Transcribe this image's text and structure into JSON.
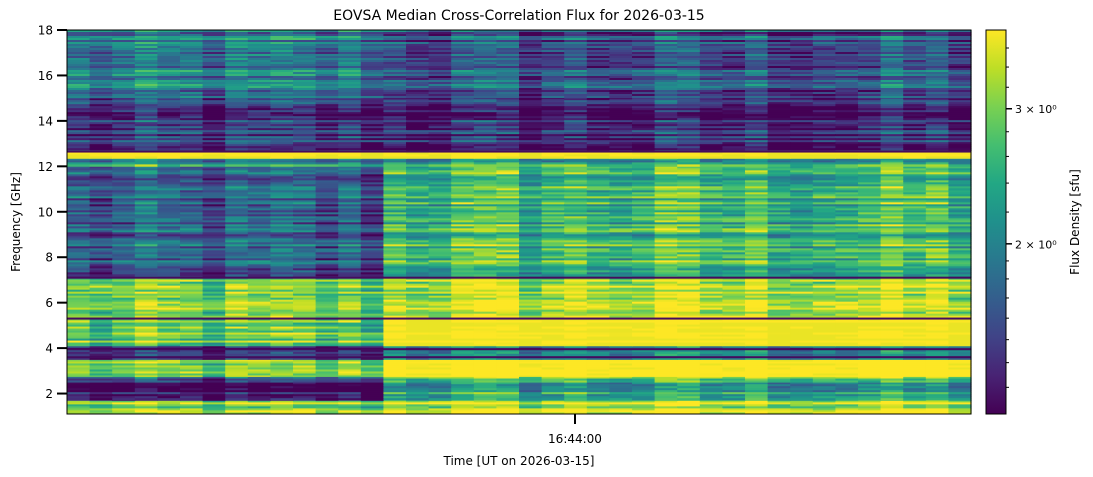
{
  "chart_data": {
    "type": "heatmap",
    "title": "EOVSA Median Cross-Correlation Flux for 2026-03-15",
    "xlabel": "Time [UT on 2026-03-15]",
    "ylabel": "Frequency [GHz]",
    "ylim": [
      1.1,
      18.0
    ],
    "x_ticks": [
      "16:44:00"
    ],
    "y_ticks": [
      "2",
      "4",
      "6",
      "8",
      "10",
      "12",
      "14",
      "16",
      "18"
    ],
    "colorbar": {
      "label": "Flux Density [sfu]",
      "scale": "log",
      "range": [
        1.2,
        3.8
      ],
      "colormap": "viridis",
      "ticks": [
        {
          "value": 2,
          "label": "2 × 10⁰"
        },
        {
          "value": 3,
          "label": "3 × 10⁰"
        }
      ]
    },
    "time_columns": 40,
    "transition_column": 14,
    "bands": [
      {
        "f0": 1.1,
        "f1": 1.7,
        "before": 2.9,
        "after": 3.4
      },
      {
        "f0": 1.7,
        "f1": 2.5,
        "before": 1.25,
        "after": 2.4
      },
      {
        "f0": 2.5,
        "f1": 2.75,
        "before": 1.8,
        "after": 3.2
      },
      {
        "f0": 2.75,
        "f1": 3.5,
        "before": 2.6,
        "after": 3.8
      },
      {
        "f0": 3.5,
        "f1": 4.1,
        "before": 1.3,
        "after": 1.9
      },
      {
        "f0": 4.1,
        "f1": 5.3,
        "before": 2.8,
        "after": 3.8
      },
      {
        "f0": 5.3,
        "f1": 7.1,
        "before": 3.0,
        "after": 3.5
      },
      {
        "f0": 7.1,
        "f1": 12.0,
        "before": 1.65,
        "after": 2.6
      },
      {
        "f0": 12.0,
        "f1": 12.35,
        "before": 2.2,
        "after": 2.4
      },
      {
        "f0": 12.35,
        "f1": 12.7,
        "before": 3.8,
        "after": 3.8
      },
      {
        "f0": 12.7,
        "f1": 15.0,
        "before": 1.4,
        "after": 1.35
      },
      {
        "f0": 15.0,
        "f1": 18.0,
        "before": 1.85,
        "after": 1.6
      }
    ],
    "dark_lines": [
      3.6,
      3.95,
      5.3,
      7.1,
      12.65
    ]
  }
}
